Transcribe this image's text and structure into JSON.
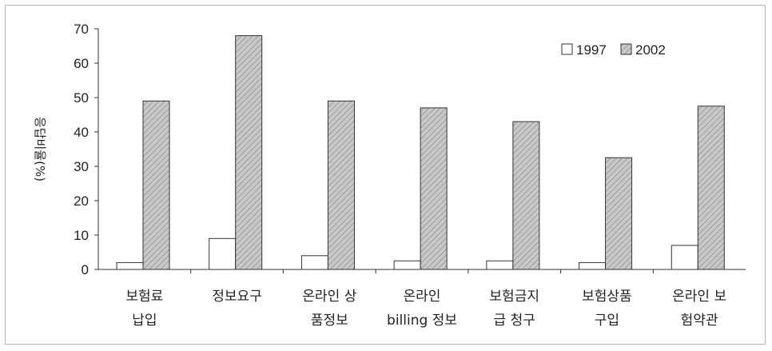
{
  "chart_data": {
    "type": "bar",
    "categories": [
      [
        "보험료",
        "납입"
      ],
      [
        "정보요구"
      ],
      [
        "온라인 상",
        "품정보"
      ],
      [
        "온라인",
        "billing 정보"
      ],
      [
        "보험금지",
        "급 청구"
      ],
      [
        "보험상품",
        "구입"
      ],
      [
        "온라인 보",
        "험약관"
      ]
    ],
    "series": [
      {
        "name": "1997",
        "values": [
          2,
          9,
          4,
          2.5,
          2.5,
          2,
          7
        ],
        "color": "#ffffff",
        "pattern": "none"
      },
      {
        "name": "2002",
        "values": [
          49,
          68,
          49,
          47,
          43,
          32.5,
          47.5
        ],
        "color": "#c8c8c8",
        "pattern": "diagonal-hatch"
      }
    ],
    "ylabel": "응답비율(%)",
    "ylim": [
      0,
      70
    ],
    "yticks": [
      0,
      10,
      20,
      30,
      40,
      50,
      60,
      70
    ],
    "legend_position": "top-right",
    "grid": false
  }
}
